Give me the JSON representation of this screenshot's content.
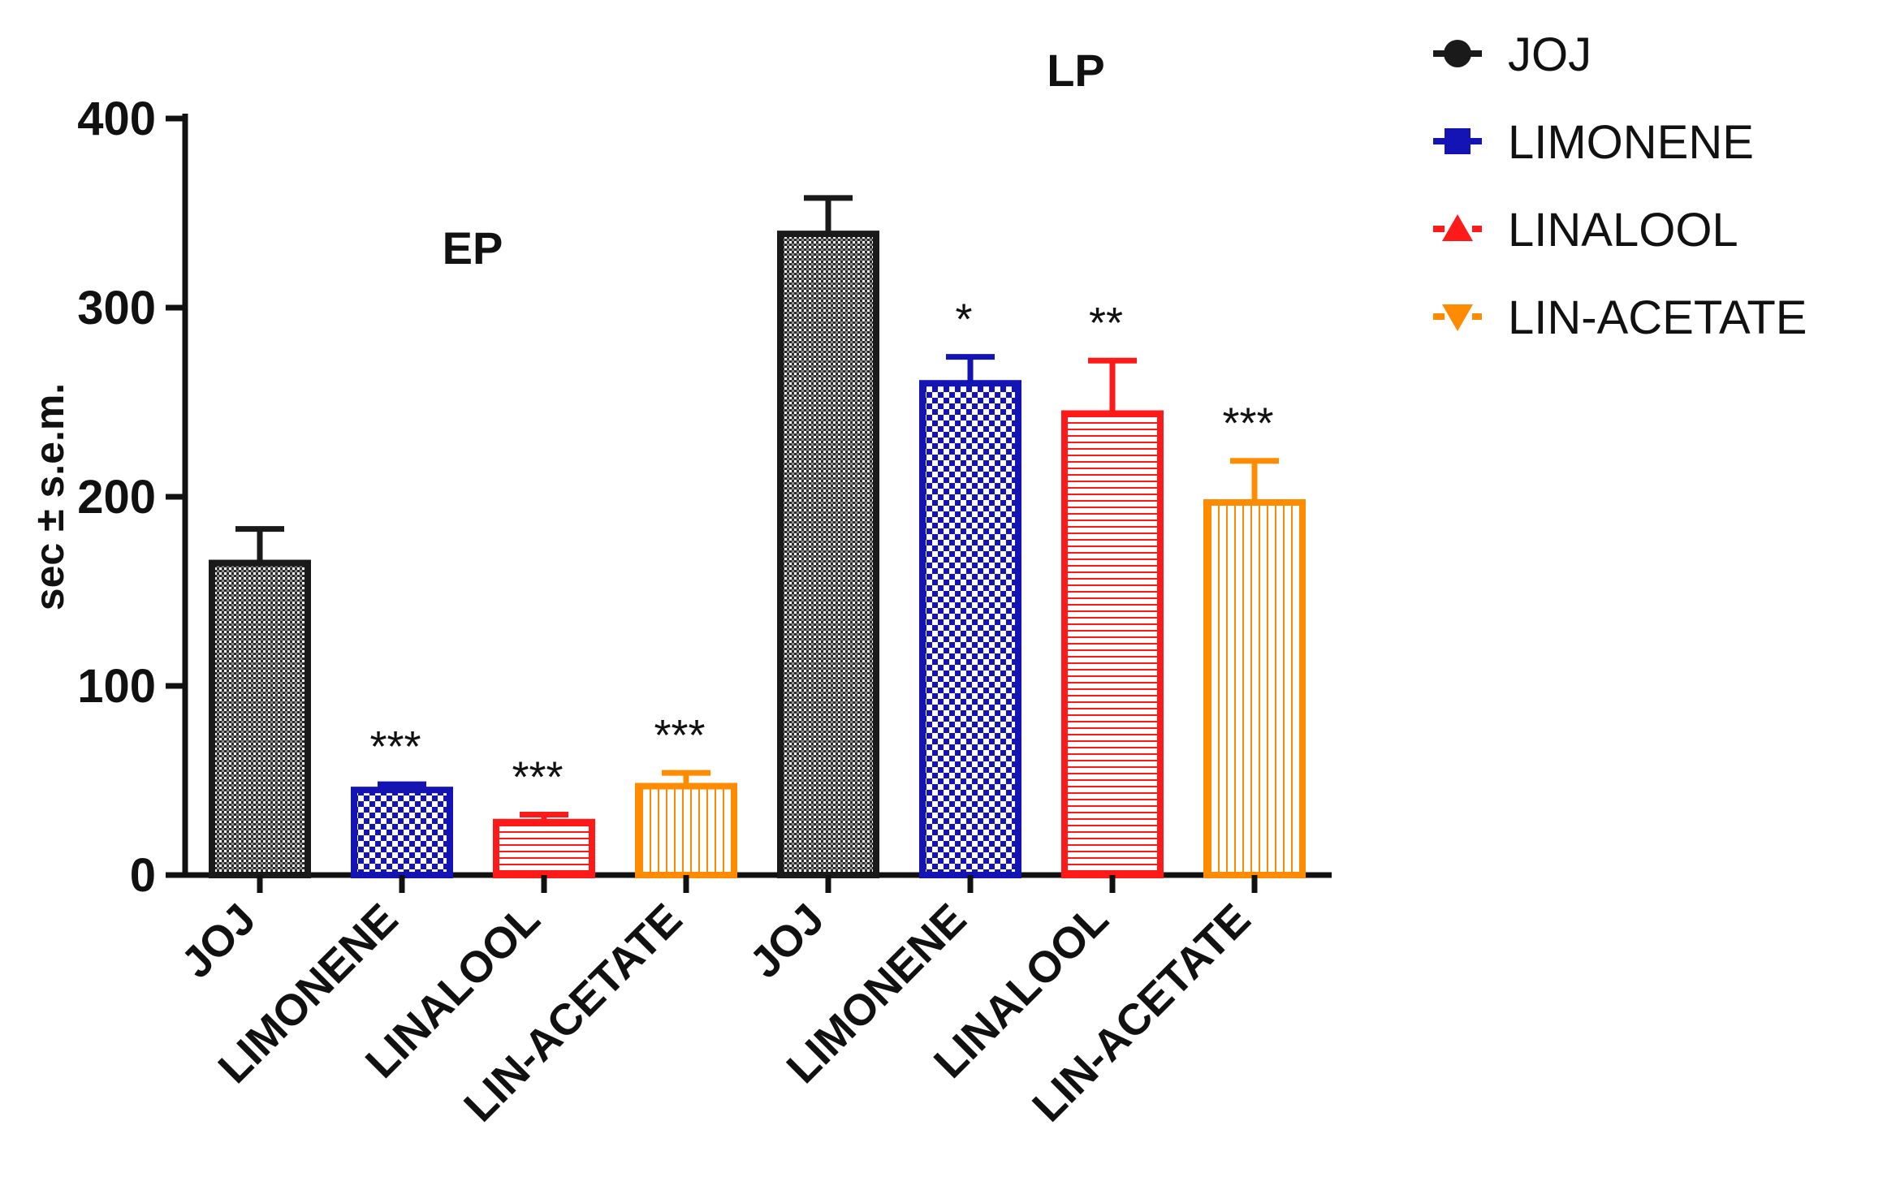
{
  "chart_data": {
    "type": "bar",
    "title": "",
    "xlabel": "",
    "ylabel": "sec ± s.e.m.",
    "ylim": [
      0,
      400
    ],
    "yticks": [
      0,
      100,
      200,
      300,
      400
    ],
    "categories": [
      "JOJ",
      "LIMONENE",
      "LINALOOL",
      "LIN-ACETATE",
      "JOJ",
      "LIMONENE",
      "LINALOOL",
      "LIN-ACETATE"
    ],
    "groups": [
      {
        "label": "EP",
        "category_indices": [
          0,
          1,
          2,
          3
        ]
      },
      {
        "label": "LP",
        "category_indices": [
          4,
          5,
          6,
          7
        ]
      }
    ],
    "values": [
      165,
      45,
      28,
      47,
      339,
      260,
      244,
      197
    ],
    "errors": [
      18,
      3,
      4,
      7,
      19,
      14,
      28,
      22
    ],
    "significance": [
      "",
      "***",
      "***",
      "***",
      "",
      "*",
      "**",
      "***"
    ],
    "series_of_bar": [
      0,
      1,
      2,
      3,
      0,
      1,
      2,
      3
    ],
    "series": [
      {
        "name": "JOJ",
        "color": "#1a1a1a",
        "marker": "circle",
        "pattern": "dense-dots"
      },
      {
        "name": "LIMONENE",
        "color": "#1414b4",
        "marker": "square",
        "pattern": "checker"
      },
      {
        "name": "LINALOOL",
        "color": "#ff1a1a",
        "marker": "triangle-up",
        "pattern": "horizontal-lines"
      },
      {
        "name": "LIN-ACETATE",
        "color": "#ff8c00",
        "marker": "triangle-down",
        "pattern": "vertical-lines"
      }
    ],
    "legend_position": "top-right"
  }
}
